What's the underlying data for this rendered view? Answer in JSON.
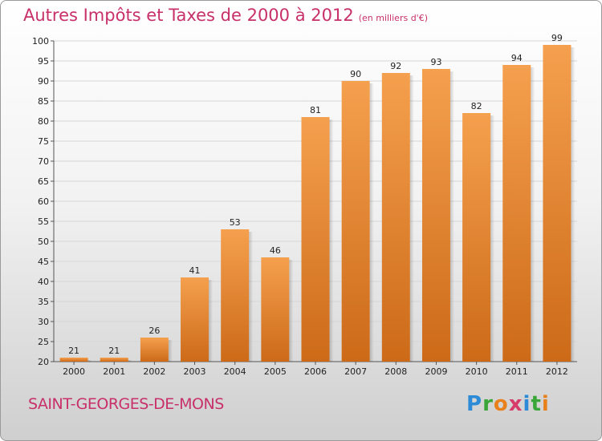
{
  "header": {
    "title": "Autres Impôts et Taxes de 2000 à 2012",
    "unit": "(en milliers d'€)"
  },
  "commune": "SAINT-GEORGES-DE-MONS",
  "logo": {
    "text": "Proxiti",
    "letters": [
      {
        "char": "P",
        "color": "#2c8ad6"
      },
      {
        "char": "r",
        "color": "#3aa63a"
      },
      {
        "char": "o",
        "color": "#e8811c"
      },
      {
        "char": "x",
        "color": "#d63b6a"
      },
      {
        "char": "i",
        "color": "#2c8ad6"
      },
      {
        "char": "t",
        "color": "#3aa63a"
      },
      {
        "char": "i",
        "color": "#e8811c"
      }
    ]
  },
  "colors": {
    "accent": "#c8306a",
    "bar_light": "#f5a04e",
    "bar_dark": "#cc6a18"
  },
  "chart_data": {
    "type": "bar",
    "categories": [
      "2000",
      "2001",
      "2002",
      "2003",
      "2004",
      "2005",
      "2006",
      "2007",
      "2008",
      "2009",
      "2010",
      "2011",
      "2012"
    ],
    "values": [
      21,
      21,
      26,
      41,
      53,
      46,
      81,
      90,
      92,
      93,
      82,
      94,
      99
    ],
    "ylim": [
      20,
      100
    ],
    "yticks": [
      20,
      25,
      30,
      35,
      40,
      45,
      50,
      55,
      60,
      65,
      70,
      75,
      80,
      85,
      90,
      95,
      100
    ],
    "grid": true
  }
}
